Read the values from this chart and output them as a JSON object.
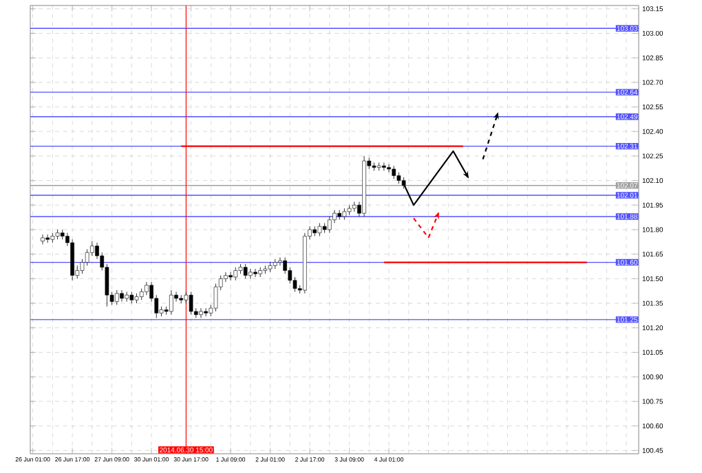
{
  "chart_data": {
    "type": "candlestick",
    "grid": true,
    "ylim": [
      100.43,
      103.17
    ],
    "yticks": [
      100.45,
      {
        "value": 100.6,
        "label": "100.60"
      },
      100.75,
      {
        "value": 100.9,
        "label": "100.90"
      },
      101.05,
      {
        "value": 101.2,
        "label": "101.20"
      },
      101.35,
      {
        "value": 101.5,
        "label": "101.50"
      },
      101.65,
      {
        "value": 101.8,
        "label": "101.80"
      },
      101.95,
      {
        "value": 102.1,
        "label": "102.10"
      },
      102.25,
      {
        "value": 102.4,
        "label": "102.40"
      },
      102.55,
      {
        "value": 102.7,
        "label": "102.70"
      },
      102.85,
      {
        "value": 103,
        "label": "103.00"
      },
      103.15
    ],
    "categories": [
      "26 Jun 01:00",
      null,
      null,
      null,
      null,
      null,
      null,
      null,
      "26 Jun 17:00",
      null,
      null,
      null,
      null,
      null,
      null,
      null,
      "27 Jun 09:00",
      null,
      null,
      null,
      null,
      null,
      null,
      null,
      "30 Jun 01:00",
      null,
      null,
      null,
      null,
      null,
      null,
      "2014.06.30 15:00",
      "30 Jun 17:00",
      null,
      null,
      null,
      null,
      null,
      null,
      null,
      "1 Jul 09:00",
      null,
      null,
      null,
      null,
      null,
      null,
      null,
      "2 Jul 01:00",
      null,
      null,
      null,
      null,
      null,
      null,
      null,
      "2 Jul 17:00",
      null,
      null,
      null,
      null,
      null,
      null,
      null,
      "3 Jul 09:00",
      null,
      null,
      null,
      null,
      null,
      null,
      null,
      "4 Jul 01:00",
      null,
      null,
      null,
      null,
      null,
      null,
      null,
      null,
      null,
      null,
      null,
      null,
      null,
      null,
      null,
      null,
      null,
      null,
      null,
      null,
      null,
      null,
      null,
      null,
      null,
      null,
      null,
      null,
      null,
      null,
      null,
      null,
      null,
      null,
      null,
      null,
      null,
      null,
      null,
      null,
      null,
      null,
      null,
      null,
      null,
      null,
      null,
      null,
      null,
      null
    ],
    "ohlc": [
      null,
      null,
      [
        101.73,
        101.77,
        101.71,
        101.75
      ],
      [
        101.75,
        101.77,
        101.72,
        101.74
      ],
      [
        101.74,
        101.78,
        101.72,
        101.76
      ],
      [
        101.76,
        101.8,
        101.74,
        101.78
      ],
      [
        101.78,
        101.8,
        101.74,
        101.76
      ],
      [
        101.76,
        101.78,
        101.7,
        101.72
      ],
      [
        101.72,
        101.74,
        101.49,
        101.52
      ],
      [
        101.52,
        101.58,
        101.5,
        101.55
      ],
      [
        101.55,
        101.62,
        101.53,
        101.6
      ],
      [
        101.6,
        101.68,
        101.58,
        101.66
      ],
      [
        101.66,
        101.73,
        101.64,
        101.7
      ],
      [
        101.7,
        101.72,
        101.62,
        101.64
      ],
      [
        101.64,
        101.66,
        101.55,
        101.57
      ],
      [
        101.57,
        101.59,
        101.33,
        101.4
      ],
      [
        101.4,
        101.42,
        101.34,
        101.36
      ],
      [
        101.36,
        101.43,
        101.34,
        101.41
      ],
      [
        101.41,
        101.43,
        101.36,
        101.38
      ],
      [
        101.38,
        101.42,
        101.36,
        101.4
      ],
      [
        101.4,
        101.42,
        101.35,
        101.37
      ],
      [
        101.37,
        101.41,
        101.35,
        101.39
      ],
      [
        101.39,
        101.44,
        101.37,
        101.42
      ],
      [
        101.42,
        101.48,
        101.4,
        101.46
      ],
      [
        101.46,
        101.48,
        101.36,
        101.38
      ],
      [
        101.38,
        101.4,
        101.26,
        101.29
      ],
      [
        101.29,
        101.33,
        101.27,
        101.31
      ],
      [
        101.31,
        101.33,
        101.28,
        101.3
      ],
      [
        101.3,
        101.43,
        101.28,
        101.4
      ],
      [
        101.4,
        101.42,
        101.36,
        101.38
      ],
      [
        101.38,
        101.4,
        101.35,
        101.37
      ],
      [
        101.37,
        101.42,
        101.35,
        101.4
      ],
      [
        101.4,
        101.42,
        101.28,
        101.3
      ],
      [
        101.3,
        101.32,
        101.26,
        101.28
      ],
      [
        101.28,
        101.32,
        101.26,
        101.3
      ],
      [
        101.3,
        101.32,
        101.27,
        101.29
      ],
      [
        101.29,
        101.34,
        101.27,
        101.32
      ],
      [
        101.32,
        101.47,
        101.3,
        101.45
      ],
      [
        101.45,
        101.52,
        101.43,
        101.5
      ],
      [
        101.5,
        101.54,
        101.48,
        101.52
      ],
      [
        101.52,
        101.54,
        101.49,
        101.51
      ],
      [
        101.51,
        101.57,
        101.49,
        101.55
      ],
      [
        101.55,
        101.59,
        101.53,
        101.57
      ],
      [
        101.57,
        101.59,
        101.5,
        101.52
      ],
      [
        101.52,
        101.56,
        101.5,
        101.54
      ],
      [
        101.54,
        101.56,
        101.51,
        101.53
      ],
      [
        101.53,
        101.57,
        101.51,
        101.55
      ],
      [
        101.55,
        101.58,
        101.53,
        101.56
      ],
      [
        101.56,
        101.6,
        101.54,
        101.58
      ],
      [
        101.58,
        101.62,
        101.56,
        101.6
      ],
      [
        101.6,
        101.63,
        101.58,
        101.61
      ],
      [
        101.61,
        101.63,
        101.53,
        101.55
      ],
      [
        101.55,
        101.57,
        101.47,
        101.49
      ],
      [
        101.49,
        101.51,
        101.42,
        101.44
      ],
      [
        101.44,
        101.46,
        101.41,
        101.43
      ],
      [
        101.43,
        101.78,
        101.41,
        101.76
      ],
      [
        101.76,
        101.82,
        101.74,
        101.8
      ],
      [
        101.8,
        101.82,
        101.76,
        101.78
      ],
      [
        101.78,
        101.84,
        101.76,
        101.82
      ],
      [
        101.82,
        101.84,
        101.78,
        101.8
      ],
      [
        101.8,
        101.88,
        101.78,
        101.86
      ],
      [
        101.86,
        101.92,
        101.84,
        101.9
      ],
      [
        101.9,
        101.92,
        101.86,
        101.88
      ],
      [
        101.88,
        101.93,
        101.86,
        101.91
      ],
      [
        101.91,
        101.95,
        101.89,
        101.93
      ],
      [
        101.93,
        101.97,
        101.91,
        101.95
      ],
      [
        101.95,
        101.97,
        101.88,
        101.9
      ],
      [
        101.9,
        102.25,
        101.88,
        102.22
      ],
      [
        102.22,
        102.24,
        102.17,
        102.19
      ],
      [
        102.19,
        102.21,
        102.16,
        102.18
      ],
      [
        102.18,
        102.21,
        102.16,
        102.19
      ],
      [
        102.19,
        102.21,
        102.16,
        102.18
      ],
      [
        102.18,
        102.2,
        102.15,
        102.17
      ],
      [
        102.17,
        102.19,
        102.11,
        102.13
      ],
      [
        102.13,
        102.15,
        102.08,
        102.1
      ],
      [
        102.1,
        102.12,
        102.05,
        102.07
      ],
      null,
      null,
      null,
      null,
      null,
      null,
      null,
      null,
      null,
      null,
      null,
      null,
      null,
      null,
      null,
      null,
      null,
      null,
      null,
      null,
      null,
      null,
      null,
      null,
      null,
      null,
      null,
      null,
      null,
      null,
      null,
      null,
      null,
      null,
      null,
      null,
      null,
      null,
      null,
      null,
      null,
      null,
      null,
      null,
      null,
      null,
      null
    ],
    "series": [
      {
        "type": "line",
        "color": "#ff0000",
        "values": [
          null,
          null,
          null,
          null,
          null,
          null,
          null,
          null,
          null,
          null,
          null,
          null,
          null,
          null,
          null,
          null,
          null,
          null,
          null,
          null,
          null,
          null,
          null,
          null,
          null,
          null,
          null,
          null,
          null,
          null,
          102.31,
          null,
          null,
          null,
          null,
          null,
          null,
          null,
          null,
          null,
          null,
          null,
          null,
          null,
          null,
          null,
          null,
          null,
          null,
          null,
          null,
          null,
          null,
          null,
          null,
          null,
          null,
          null,
          null,
          null,
          null,
          null,
          null,
          null,
          null,
          null,
          null,
          null,
          null,
          null,
          null,
          null,
          null,
          null,
          null,
          null,
          null,
          null,
          null,
          null,
          null,
          null,
          null,
          null,
          null,
          null,
          null,
          102.31,
          null,
          null,
          null,
          null,
          null,
          null,
          null,
          null,
          null,
          null,
          null,
          null,
          null,
          null,
          null,
          null,
          null,
          null,
          null,
          null,
          null,
          null,
          null,
          null,
          null,
          null,
          null,
          null,
          null,
          null,
          null,
          null,
          null,
          null,
          null
        ]
      },
      {
        "type": "line",
        "color": "#ff0000",
        "values": [
          null,
          null,
          null,
          null,
          null,
          null,
          null,
          null,
          null,
          null,
          null,
          null,
          null,
          null,
          null,
          null,
          null,
          null,
          null,
          null,
          null,
          null,
          null,
          null,
          null,
          null,
          null,
          null,
          null,
          null,
          null,
          null,
          null,
          null,
          null,
          null,
          null,
          null,
          null,
          null,
          null,
          null,
          null,
          null,
          null,
          null,
          null,
          null,
          null,
          null,
          null,
          null,
          null,
          null,
          null,
          null,
          null,
          null,
          null,
          null,
          null,
          null,
          null,
          null,
          null,
          null,
          null,
          null,
          null,
          null,
          null,
          101.6,
          null,
          null,
          null,
          null,
          null,
          null,
          null,
          null,
          null,
          null,
          null,
          null,
          null,
          null,
          null,
          null,
          null,
          null,
          null,
          null,
          null,
          null,
          null,
          null,
          null,
          null,
          null,
          null,
          null,
          null,
          null,
          null,
          null,
          null,
          null,
          null,
          null,
          null,
          null,
          null,
          101.6,
          null,
          null,
          null,
          null,
          null,
          null,
          null,
          null,
          null,
          null
        ]
      },
      {
        "type": "line",
        "color": "#000000",
        "line_style": "solid",
        "values": [
          null,
          null,
          null,
          null,
          null,
          null,
          null,
          null,
          null,
          null,
          null,
          null,
          null,
          null,
          null,
          null,
          null,
          null,
          null,
          null,
          null,
          null,
          null,
          null,
          null,
          null,
          null,
          null,
          null,
          null,
          null,
          null,
          null,
          null,
          null,
          null,
          null,
          null,
          null,
          null,
          null,
          null,
          null,
          null,
          null,
          null,
          null,
          null,
          null,
          null,
          null,
          null,
          null,
          null,
          null,
          null,
          null,
          null,
          null,
          null,
          null,
          null,
          null,
          null,
          null,
          null,
          null,
          null,
          null,
          null,
          null,
          null,
          null,
          null,
          null,
          102.08,
          null,
          101.95,
          null,
          null,
          null,
          null,
          null,
          null,
          null,
          102.28,
          null,
          null,
          102.12,
          null,
          null,
          null,
          null,
          null,
          null,
          null,
          null,
          null,
          null,
          null,
          null,
          null,
          null,
          null,
          null,
          null,
          null,
          null,
          null,
          null,
          null,
          null,
          null,
          null,
          null,
          null,
          null,
          null,
          null,
          null,
          null,
          null,
          null
        ]
      },
      {
        "type": "line",
        "color": "#000000",
        "line_style": "dashed",
        "values": [
          null,
          null,
          null,
          null,
          null,
          null,
          null,
          null,
          null,
          null,
          null,
          null,
          null,
          null,
          null,
          null,
          null,
          null,
          null,
          null,
          null,
          null,
          null,
          null,
          null,
          null,
          null,
          null,
          null,
          null,
          null,
          null,
          null,
          null,
          null,
          null,
          null,
          null,
          null,
          null,
          null,
          null,
          null,
          null,
          null,
          null,
          null,
          null,
          null,
          null,
          null,
          null,
          null,
          null,
          null,
          null,
          null,
          null,
          null,
          null,
          null,
          null,
          null,
          null,
          null,
          null,
          null,
          null,
          null,
          null,
          null,
          null,
          null,
          null,
          null,
          null,
          null,
          null,
          null,
          null,
          null,
          null,
          null,
          null,
          null,
          null,
          null,
          null,
          null,
          null,
          null,
          102.23,
          null,
          null,
          102.51,
          null,
          null,
          null,
          null,
          null,
          null,
          null,
          null,
          null,
          null,
          null,
          null,
          null,
          null,
          null,
          null,
          null,
          null,
          null,
          null,
          null,
          null,
          null,
          null,
          null,
          null,
          null,
          null
        ]
      },
      {
        "type": "line",
        "color": "#ff0000",
        "line_style": "dashed",
        "values": [
          null,
          null,
          null,
          null,
          null,
          null,
          null,
          null,
          null,
          null,
          null,
          null,
          null,
          null,
          null,
          null,
          null,
          null,
          null,
          null,
          null,
          null,
          null,
          null,
          null,
          null,
          null,
          null,
          null,
          null,
          null,
          null,
          null,
          null,
          null,
          null,
          null,
          null,
          null,
          null,
          null,
          null,
          null,
          null,
          null,
          null,
          null,
          null,
          null,
          null,
          null,
          null,
          null,
          null,
          null,
          null,
          null,
          null,
          null,
          null,
          null,
          null,
          null,
          null,
          null,
          null,
          null,
          null,
          null,
          null,
          null,
          null,
          null,
          null,
          null,
          null,
          null,
          101.87,
          null,
          null,
          101.75,
          null,
          101.9,
          null,
          null,
          null,
          null,
          null,
          null,
          null,
          null,
          null,
          null,
          null,
          null,
          null,
          null,
          null,
          null,
          null,
          null,
          null,
          null,
          null,
          null,
          null,
          null,
          null,
          null,
          null,
          null,
          null,
          null,
          null,
          null,
          null,
          null,
          null,
          null,
          null,
          null,
          null,
          null
        ]
      }
    ],
    "ref_lines": [
      {
        "axis": "y",
        "value": 103.03,
        "label": "103.03",
        "color": "#5050ff"
      },
      {
        "axis": "y",
        "value": 102.64,
        "label": "102.64",
        "color": "#5050ff"
      },
      {
        "axis": "y",
        "value": 102.49,
        "label": "102.49",
        "color": "#5050ff"
      },
      {
        "axis": "y",
        "value": 102.31,
        "label": "102.31",
        "color": "#5050ff"
      },
      {
        "axis": "y",
        "value": 102.07,
        "label": "102.07",
        "color": "#a0a0a0"
      },
      {
        "axis": "y",
        "value": 102.01,
        "label": "102.01",
        "color": "#5050ff"
      },
      {
        "axis": "y",
        "value": 101.88,
        "label": "101.88",
        "color": "#5050ff"
      },
      {
        "axis": "y",
        "value": 101.6,
        "label": "101.60",
        "color": "#5050ff"
      },
      {
        "axis": "y",
        "value": 101.25,
        "label": "101.25",
        "color": "#5050ff"
      },
      {
        "axis": "x",
        "value": "2014.06.30 15:00",
        "color": "#ff0000"
      }
    ]
  }
}
